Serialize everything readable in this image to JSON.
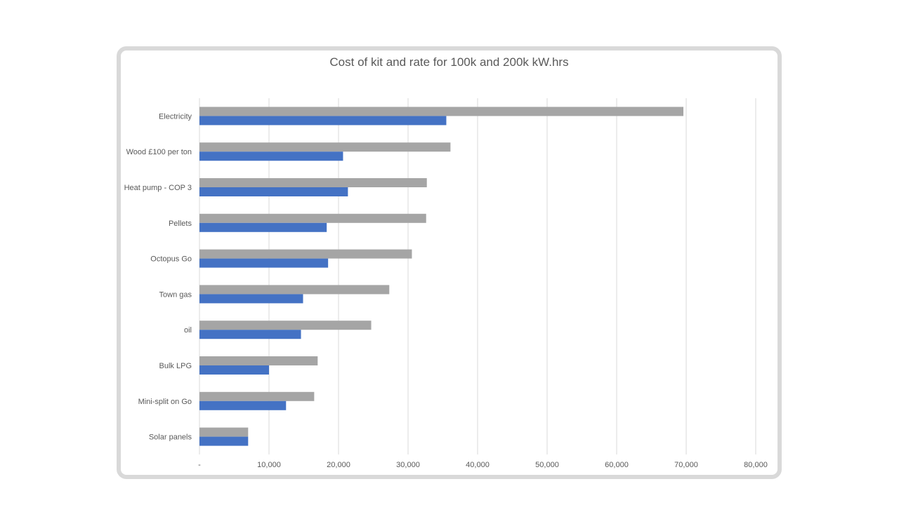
{
  "chart_data": {
    "type": "bar",
    "orientation": "horizontal",
    "title": "Cost of kit and rate for 100k and 200k kW.hrs",
    "xlabel": "",
    "ylabel": "",
    "categories": [
      "Electricity",
      "Wood £100 per ton",
      "Heat pump - COP 3",
      "Pellets",
      "Octopus Go",
      "Town gas",
      "oil",
      "Bulk LPG",
      "Mini-split on Go",
      "Solar panels"
    ],
    "series": [
      {
        "name": "",
        "color": "#a5a5a5",
        "values": [
          69600,
          36100,
          32700,
          32600,
          30550,
          27300,
          24700,
          17000,
          16500,
          7000
        ]
      },
      {
        "name": "",
        "color": "#4472c4",
        "values": [
          35500,
          20650,
          21350,
          18300,
          18500,
          14900,
          14600,
          10000,
          12450,
          7000
        ]
      }
    ],
    "xlim": [
      0,
      80000
    ],
    "xticks": [
      0,
      10000,
      20000,
      30000,
      40000,
      50000,
      60000,
      70000,
      80000
    ],
    "xtick_labels": [
      "-",
      "10,000",
      "20,000",
      "30,000",
      "40,000",
      "50,000",
      "60,000",
      "70,000",
      "80,000"
    ],
    "grid": true,
    "legend": "none",
    "gridline_color": "#d9d9d9"
  }
}
